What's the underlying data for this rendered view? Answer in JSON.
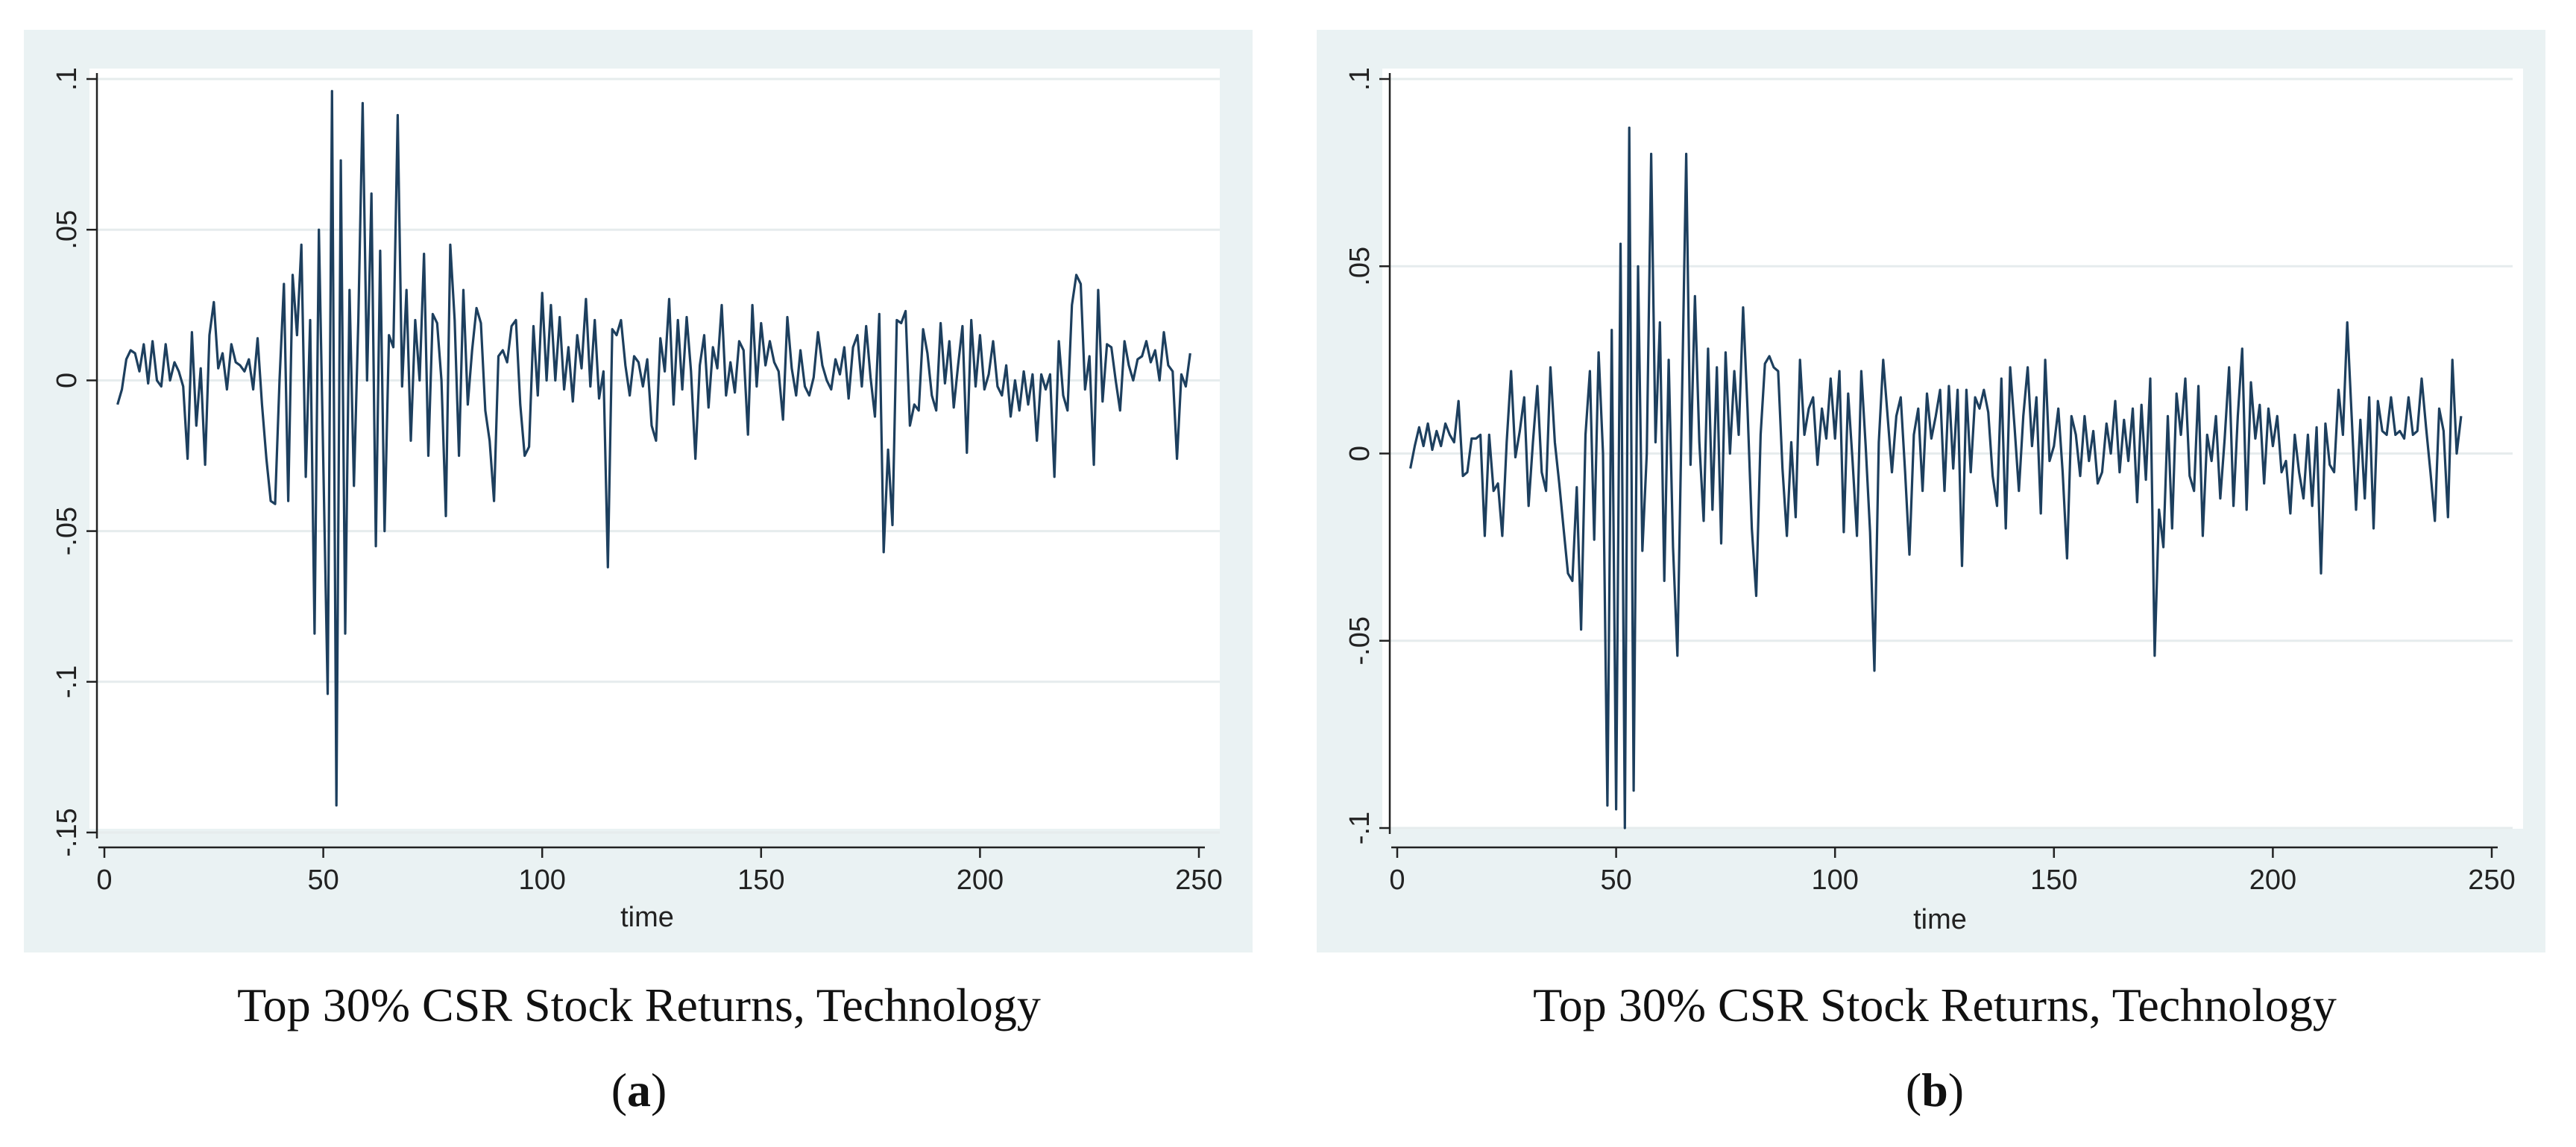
{
  "colors": {
    "panel_bg": "#eaf2f3",
    "plot_bg": "#ffffff",
    "grid": "#e6eced",
    "line": "#1d3f5e",
    "axis": "#222222"
  },
  "chart_data": [
    {
      "id": "a",
      "type": "line",
      "title": "Top 30% CSR Stock Returns, Technology",
      "panel_label": "a",
      "xlabel": "time",
      "ylabel": "",
      "xlim": [
        0,
        250
      ],
      "ylim": [
        -0.15,
        0.1
      ],
      "grid": true,
      "xticks": [
        0,
        50,
        100,
        150,
        200,
        250
      ],
      "xtick_labels": [
        "0",
        "50",
        "100",
        "150",
        "200",
        "250"
      ],
      "yticks": [
        -0.15,
        -0.1,
        -0.05,
        0,
        0.05,
        0.1
      ],
      "ytick_labels": [
        "-.15",
        "-.1",
        "-.05",
        "0",
        ".05",
        ".1"
      ],
      "x_start": 3,
      "y": [
        -0.008,
        -0.003,
        0.007,
        0.01,
        0.009,
        0.003,
        0.012,
        -0.001,
        0.013,
        0.0,
        -0.002,
        0.012,
        0.0,
        0.006,
        0.003,
        -0.002,
        -0.026,
        0.016,
        -0.015,
        0.004,
        -0.028,
        0.015,
        0.026,
        0.004,
        0.009,
        -0.003,
        0.012,
        0.006,
        0.005,
        0.003,
        0.007,
        -0.003,
        0.014,
        -0.008,
        -0.026,
        -0.04,
        -0.041,
        0.0,
        0.032,
        -0.04,
        0.035,
        0.015,
        0.045,
        -0.032,
        0.02,
        -0.084,
        0.05,
        -0.027,
        -0.104,
        0.096,
        -0.141,
        0.073,
        -0.084,
        0.03,
        -0.035,
        0.02,
        0.092,
        0.0,
        0.062,
        -0.055,
        0.043,
        -0.05,
        0.015,
        0.011,
        0.088,
        -0.002,
        0.03,
        -0.02,
        0.02,
        0.0,
        0.042,
        -0.025,
        0.022,
        0.019,
        0.0,
        -0.045,
        0.045,
        0.02,
        -0.025,
        0.03,
        -0.008,
        0.01,
        0.024,
        0.019,
        -0.01,
        -0.02,
        -0.04,
        0.008,
        0.01,
        0.006,
        0.018,
        0.02,
        -0.008,
        -0.025,
        -0.022,
        0.018,
        -0.005,
        0.029,
        0.0,
        0.025,
        0.0,
        0.021,
        -0.003,
        0.011,
        -0.007,
        0.015,
        0.004,
        0.027,
        -0.002,
        0.02,
        -0.006,
        0.003,
        -0.062,
        0.017,
        0.015,
        0.02,
        0.005,
        -0.005,
        0.008,
        0.006,
        -0.002,
        0.007,
        -0.015,
        -0.02,
        0.014,
        0.003,
        0.027,
        -0.008,
        0.02,
        -0.003,
        0.021,
        0.003,
        -0.026,
        0.005,
        0.015,
        -0.009,
        0.011,
        0.004,
        0.025,
        -0.005,
        0.006,
        -0.004,
        0.013,
        0.01,
        -0.018,
        0.025,
        -0.002,
        0.019,
        0.005,
        0.013,
        0.006,
        0.003,
        -0.013,
        0.021,
        0.004,
        -0.005,
        0.01,
        -0.002,
        -0.005,
        0.001,
        0.016,
        0.005,
        0.0,
        -0.003,
        0.007,
        0.002,
        0.011,
        -0.006,
        0.011,
        0.015,
        -0.002,
        0.018,
        0.001,
        -0.012,
        0.022,
        -0.057,
        -0.023,
        -0.048,
        0.02,
        0.019,
        0.023,
        -0.015,
        -0.008,
        -0.01,
        0.017,
        0.009,
        -0.005,
        -0.01,
        0.019,
        -0.001,
        0.013,
        -0.009,
        0.005,
        0.018,
        -0.024,
        0.02,
        -0.002,
        0.015,
        -0.003,
        0.002,
        0.013,
        -0.002,
        -0.005,
        0.005,
        -0.012,
        0.0,
        -0.01,
        0.003,
        -0.008,
        0.002,
        -0.02,
        0.002,
        -0.003,
        0.002,
        -0.032,
        0.013,
        -0.005,
        -0.01,
        0.025,
        0.035,
        0.032,
        -0.003,
        0.008,
        -0.028,
        0.03,
        -0.007,
        0.012,
        0.011,
        0.0,
        -0.01,
        0.013,
        0.005,
        0.0,
        0.007,
        0.008,
        0.013,
        0.006,
        0.01,
        0.0,
        0.016,
        0.005,
        0.003,
        -0.026,
        0.002,
        -0.002,
        0.009
      ]
    },
    {
      "id": "b",
      "type": "line",
      "title": "Top 30% CSR Stock Returns, Technology",
      "panel_label": "b",
      "xlabel": "time",
      "ylabel": "",
      "xlim": [
        0,
        250
      ],
      "ylim": [
        -0.1,
        0.1
      ],
      "grid": true,
      "xticks": [
        0,
        50,
        100,
        150,
        200,
        250
      ],
      "xtick_labels": [
        "0",
        "50",
        "100",
        "150",
        "200",
        "250"
      ],
      "yticks": [
        -0.1,
        -0.05,
        0,
        0.05,
        0.1
      ],
      "ytick_labels": [
        "-.1",
        "-.05",
        "0",
        ".05",
        ".1"
      ],
      "x_start": 3,
      "y": [
        -0.004,
        0.002,
        0.007,
        0.002,
        0.008,
        0.001,
        0.006,
        0.002,
        0.008,
        0.005,
        0.003,
        0.014,
        -0.006,
        -0.005,
        0.004,
        0.004,
        0.005,
        -0.022,
        0.005,
        -0.01,
        -0.008,
        -0.022,
        0.003,
        0.022,
        -0.001,
        0.006,
        0.015,
        -0.014,
        0.003,
        0.018,
        -0.005,
        -0.01,
        0.023,
        0.003,
        -0.008,
        -0.02,
        -0.032,
        -0.034,
        -0.009,
        -0.047,
        0.005,
        0.022,
        -0.023,
        0.027,
        0.0,
        -0.094,
        0.033,
        -0.095,
        0.056,
        -0.1,
        0.087,
        -0.09,
        0.05,
        -0.026,
        0.0,
        0.08,
        0.003,
        0.035,
        -0.034,
        0.025,
        -0.025,
        -0.054,
        0.012,
        0.08,
        -0.003,
        0.042,
        0.003,
        -0.018,
        0.028,
        -0.015,
        0.023,
        -0.024,
        0.027,
        0.0,
        0.022,
        0.005,
        0.039,
        0.012,
        -0.02,
        -0.038,
        0.005,
        0.024,
        0.026,
        0.023,
        0.022,
        -0.004,
        -0.022,
        0.003,
        -0.017,
        0.025,
        0.005,
        0.012,
        0.015,
        -0.003,
        0.012,
        0.004,
        0.02,
        0.004,
        0.022,
        -0.021,
        0.016,
        -0.002,
        -0.022,
        0.022,
        0.002,
        -0.021,
        -0.058,
        0.003,
        0.025,
        0.01,
        -0.005,
        0.01,
        0.015,
        -0.005,
        -0.027,
        0.005,
        0.012,
        -0.01,
        0.016,
        0.004,
        0.01,
        0.017,
        -0.01,
        0.018,
        -0.004,
        0.017,
        -0.03,
        0.017,
        -0.005,
        0.015,
        0.012,
        0.017,
        0.011,
        -0.006,
        -0.014,
        0.02,
        -0.02,
        0.023,
        0.007,
        -0.01,
        0.01,
        0.023,
        0.002,
        0.015,
        -0.016,
        0.025,
        -0.002,
        0.002,
        0.012,
        -0.005,
        -0.028,
        0.01,
        0.005,
        -0.006,
        0.01,
        -0.002,
        0.006,
        -0.008,
        -0.005,
        0.008,
        0.0,
        0.014,
        -0.005,
        0.009,
        -0.002,
        0.012,
        -0.013,
        0.013,
        -0.007,
        0.02,
        -0.054,
        -0.015,
        -0.025,
        0.01,
        -0.02,
        0.016,
        0.005,
        0.02,
        -0.006,
        -0.01,
        0.018,
        -0.022,
        0.005,
        -0.002,
        0.01,
        -0.012,
        0.004,
        0.023,
        -0.014,
        0.01,
        0.028,
        -0.015,
        0.019,
        0.004,
        0.013,
        -0.008,
        0.012,
        0.002,
        0.01,
        -0.005,
        -0.002,
        -0.016,
        0.005,
        -0.005,
        -0.012,
        0.005,
        -0.014,
        0.007,
        -0.032,
        0.008,
        -0.003,
        -0.005,
        0.017,
        0.005,
        0.035,
        0.01,
        -0.015,
        0.009,
        -0.012,
        0.015,
        -0.02,
        0.014,
        0.006,
        0.005,
        0.015,
        0.005,
        0.006,
        0.004,
        0.015,
        0.005,
        0.006,
        0.02,
        0.007,
        -0.005,
        -0.018,
        0.012,
        0.006,
        -0.017,
        0.025,
        0.0,
        0.01
      ]
    }
  ]
}
